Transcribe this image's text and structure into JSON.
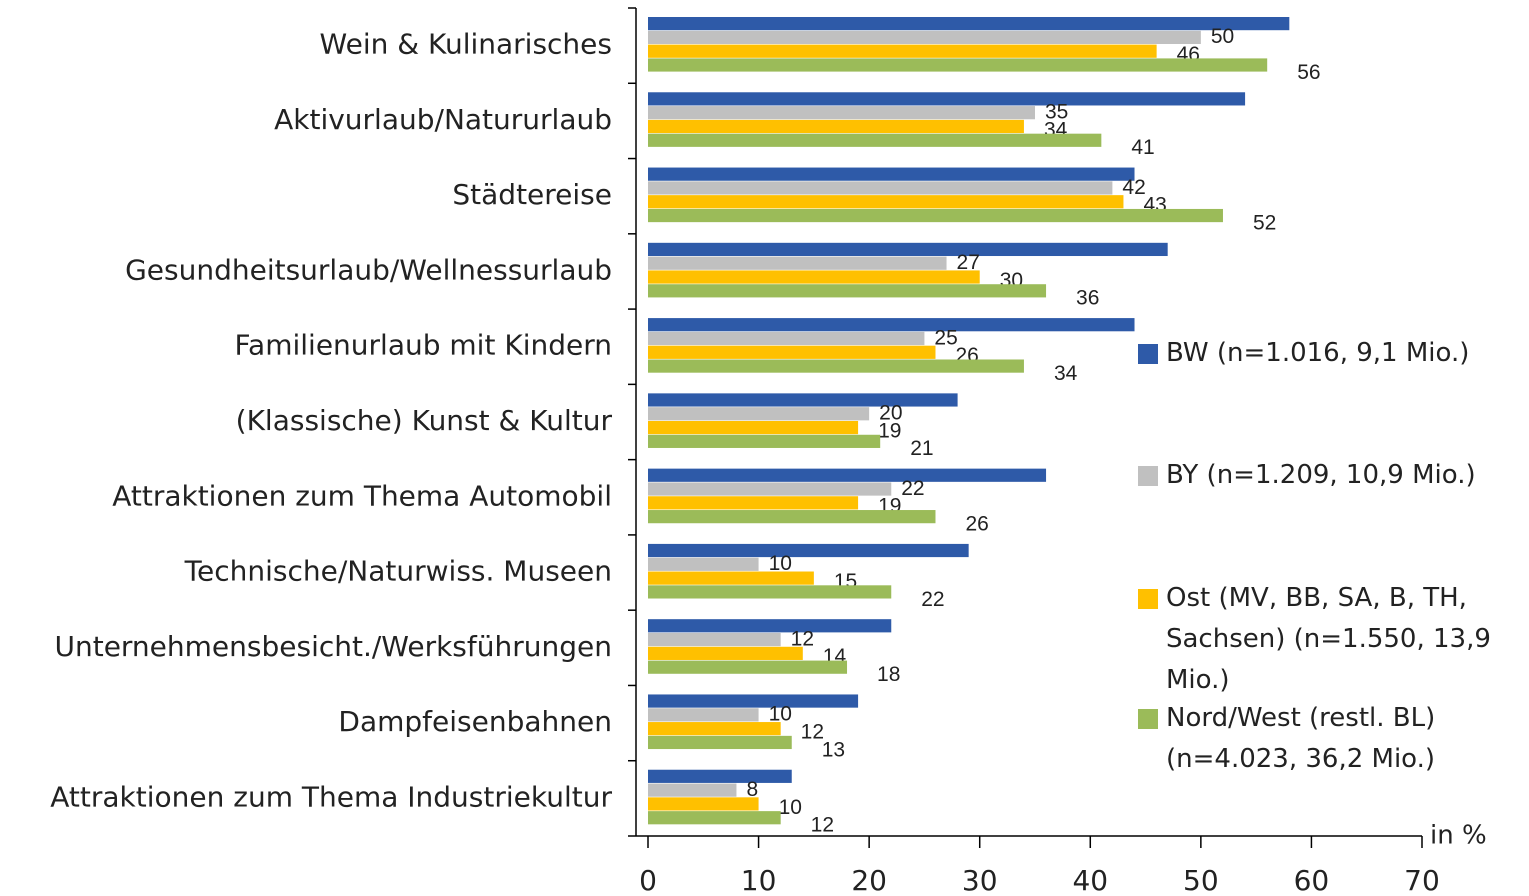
{
  "chart_data": {
    "type": "hbar",
    "categories": [
      "Wein & Kulinarisches",
      "Aktivurlaub/Natururlaub",
      "Städtereise",
      "Gesundheitsurlaub/Wellnessurlaub",
      "Familienurlaub mit Kindern",
      "(Klassische) Kunst & Kultur",
      "Attraktionen zum Thema Automobil",
      "Technische/Naturwiss. Museen",
      "Unternehmensbesicht./Werksführungen",
      "Dampfeisenbahnen",
      "Attraktionen zum Thema Industriekultur"
    ],
    "series": [
      {
        "name": "BW (n=1.016, 9,1 Mio.)",
        "color": "#2e5aa8",
        "values": [
          58,
          54,
          44,
          47,
          44,
          28,
          36,
          29,
          22,
          19,
          13
        ],
        "labels": false
      },
      {
        "name": "BY (n=1.209, 10,9 Mio.)",
        "color": "#c0c0c0",
        "values": [
          50,
          35,
          42,
          27,
          25,
          20,
          22,
          10,
          12,
          10,
          8
        ],
        "labels": true
      },
      {
        "name": "Ost (MV, BB, SA, B, TH, Sachsen) (n=1.550, 13,9 Mio.)",
        "color": "#ffc000",
        "values": [
          46,
          34,
          43,
          30,
          26,
          19,
          19,
          15,
          14,
          12,
          10
        ],
        "labels": true
      },
      {
        "name": "Nord/West (restl. BL) (n=4.023, 36,2 Mio.)",
        "color": "#9bbb59",
        "values": [
          56,
          41,
          52,
          36,
          34,
          21,
          26,
          22,
          18,
          13,
          12
        ],
        "labels": true
      }
    ],
    "x_label": "in %",
    "xlim": [
      0,
      70
    ],
    "xticks": [
      0,
      10,
      20,
      30,
      40,
      50,
      60,
      70
    ],
    "legend": "right"
  }
}
